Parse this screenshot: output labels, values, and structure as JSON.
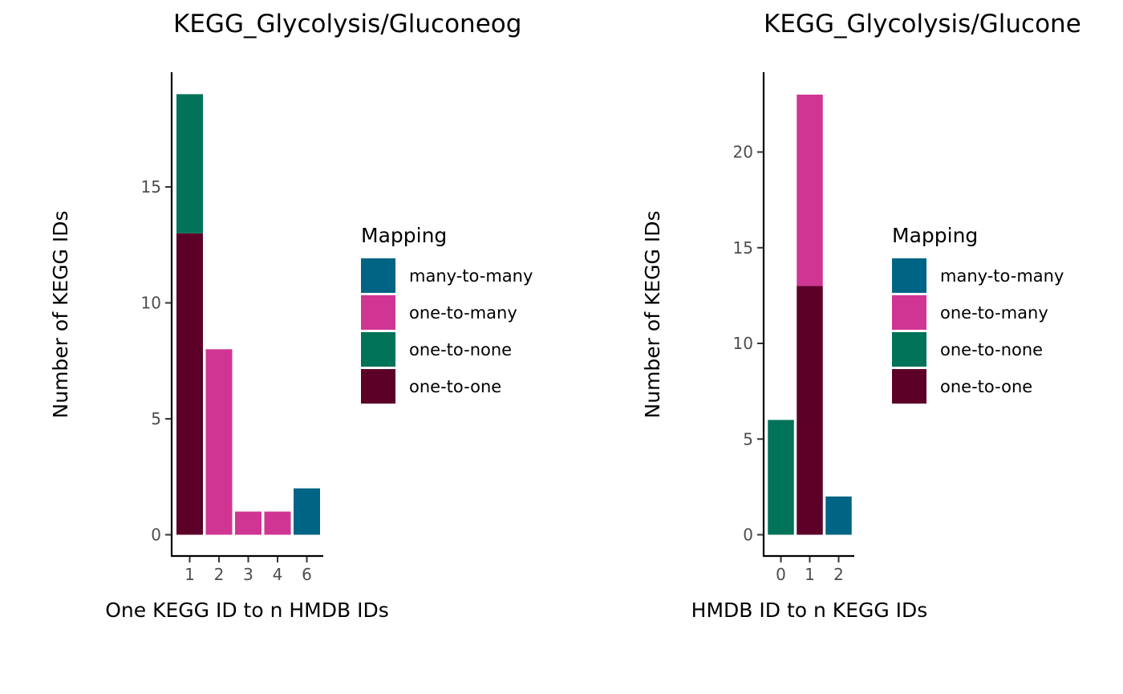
{
  "colors": {
    "many-to-many": "#006485",
    "one-to-many": "#d03594",
    "one-to-none": "#007359",
    "one-to-one": "#5c0028"
  },
  "chart_data": [
    {
      "type": "bar",
      "stacked": true,
      "title": "KEGG_Glycolysis/Gluconeog",
      "xlabel": "One KEGG ID to n HMDB IDs",
      "ylabel": "Number of KEGG IDs",
      "categories": [
        "1",
        "2",
        "3",
        "4",
        "6"
      ],
      "yticks": [
        0,
        5,
        10,
        15
      ],
      "ylim": [
        0,
        19
      ],
      "series": [
        {
          "name": "one-to-one",
          "values": [
            13,
            0,
            0,
            0,
            0
          ]
        },
        {
          "name": "one-to-none",
          "values": [
            6,
            0,
            0,
            0,
            0
          ]
        },
        {
          "name": "one-to-many",
          "values": [
            0,
            8,
            1,
            1,
            0
          ]
        },
        {
          "name": "many-to-many",
          "values": [
            0,
            0,
            0,
            0,
            2
          ]
        }
      ],
      "legend": {
        "title": "Mapping",
        "position": "right",
        "entries": [
          "many-to-many",
          "one-to-many",
          "one-to-none",
          "one-to-one"
        ]
      },
      "grid": false
    },
    {
      "type": "bar",
      "stacked": true,
      "title": "KEGG_Glycolysis/Glucone",
      "xlabel": "HMDB ID to n KEGG IDs",
      "ylabel": "Number of KEGG IDs",
      "categories": [
        "0",
        "1",
        "2"
      ],
      "yticks": [
        0,
        5,
        10,
        15,
        20
      ],
      "ylim": [
        0,
        23
      ],
      "series": [
        {
          "name": "one-to-none",
          "values": [
            6,
            0,
            0
          ]
        },
        {
          "name": "one-to-one",
          "values": [
            0,
            13,
            0
          ]
        },
        {
          "name": "one-to-many",
          "values": [
            0,
            10,
            0
          ]
        },
        {
          "name": "many-to-many",
          "values": [
            0,
            0,
            2
          ]
        }
      ],
      "legend": {
        "title": "Mapping",
        "position": "right",
        "entries": [
          "many-to-many",
          "one-to-many",
          "one-to-none",
          "one-to-one"
        ]
      },
      "grid": false
    }
  ]
}
